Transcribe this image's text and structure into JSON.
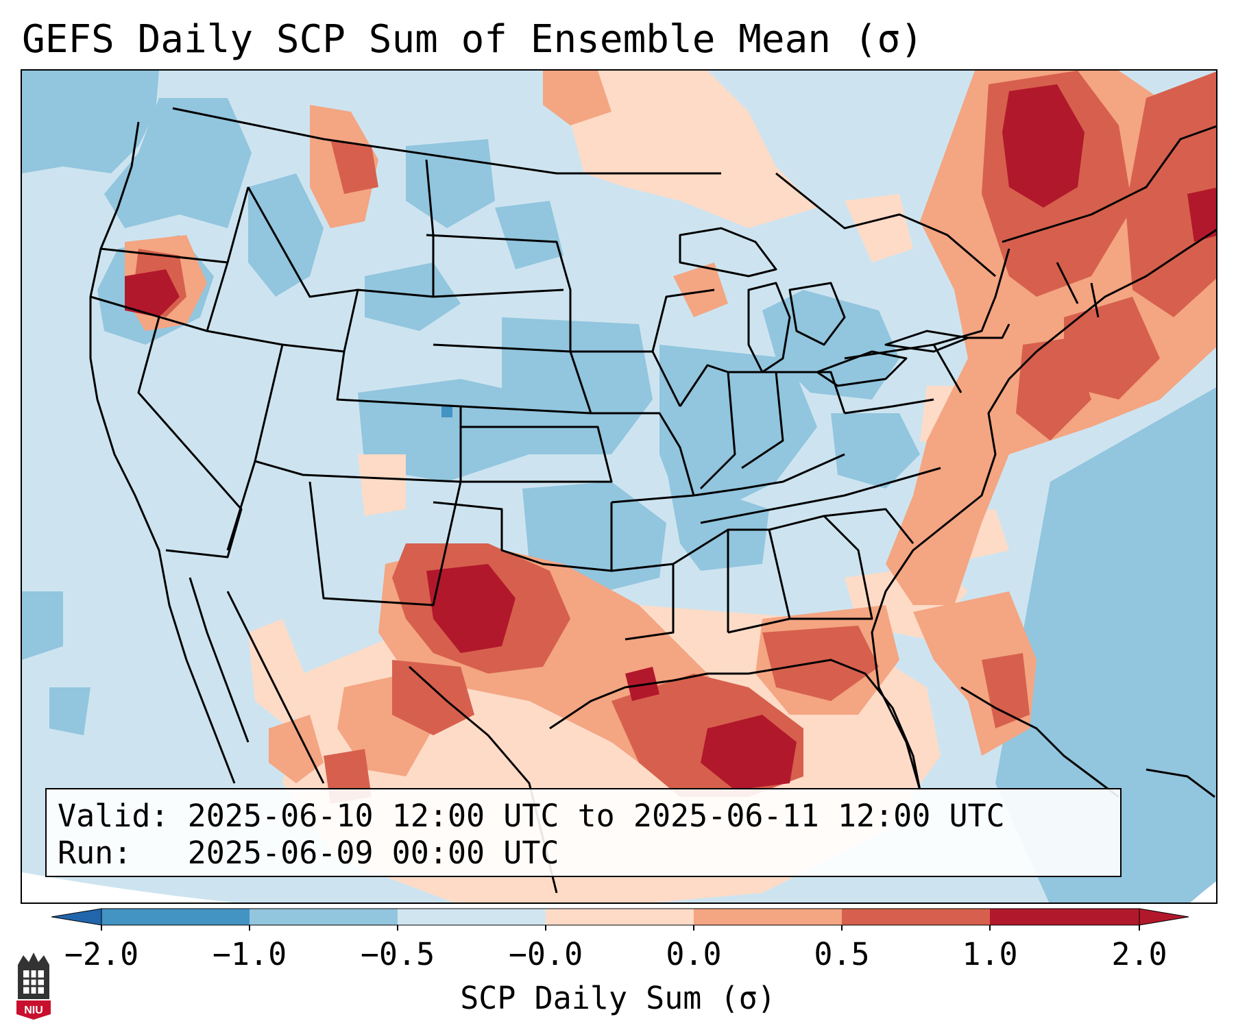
{
  "title": "GEFS Daily SCP Sum of Ensemble Mean (σ)",
  "info": {
    "valid_label": "Valid:",
    "valid_range": "2025-06-10 12:00 UTC to 2025-06-11 12:00 UTC",
    "run_label": "Run:",
    "run_time": "2025-06-09 00:00 UTC"
  },
  "colorbar": {
    "label": "SCP Daily Sum (σ)",
    "ticks": [
      "−2.0",
      "−1.0",
      "−0.5",
      "−0.0",
      "0.0",
      "0.5",
      "1.0",
      "2.0"
    ],
    "bins": [
      {
        "color": "#4393c3"
      },
      {
        "color": "#92c5de"
      },
      {
        "color": "#d1e5f0"
      },
      {
        "color": "#fddbc7"
      },
      {
        "color": "#f4a582"
      },
      {
        "color": "#d6604d"
      },
      {
        "color": "#b2182b"
      }
    ],
    "extend_low_color": "#2166ac",
    "extend_high_color": "#b2182b"
  },
  "map": {
    "colors": {
      "ocean": "#cde4f0",
      "blue_mid": "#92c5de",
      "blue_dark": "#4393c3",
      "peach": "#fddbc7",
      "salmon": "#f4a582",
      "red": "#d6604d",
      "dark_red": "#b2182b",
      "boundary": "#000000"
    }
  },
  "logo": {
    "text": "NIU",
    "color": "#c8102e"
  }
}
